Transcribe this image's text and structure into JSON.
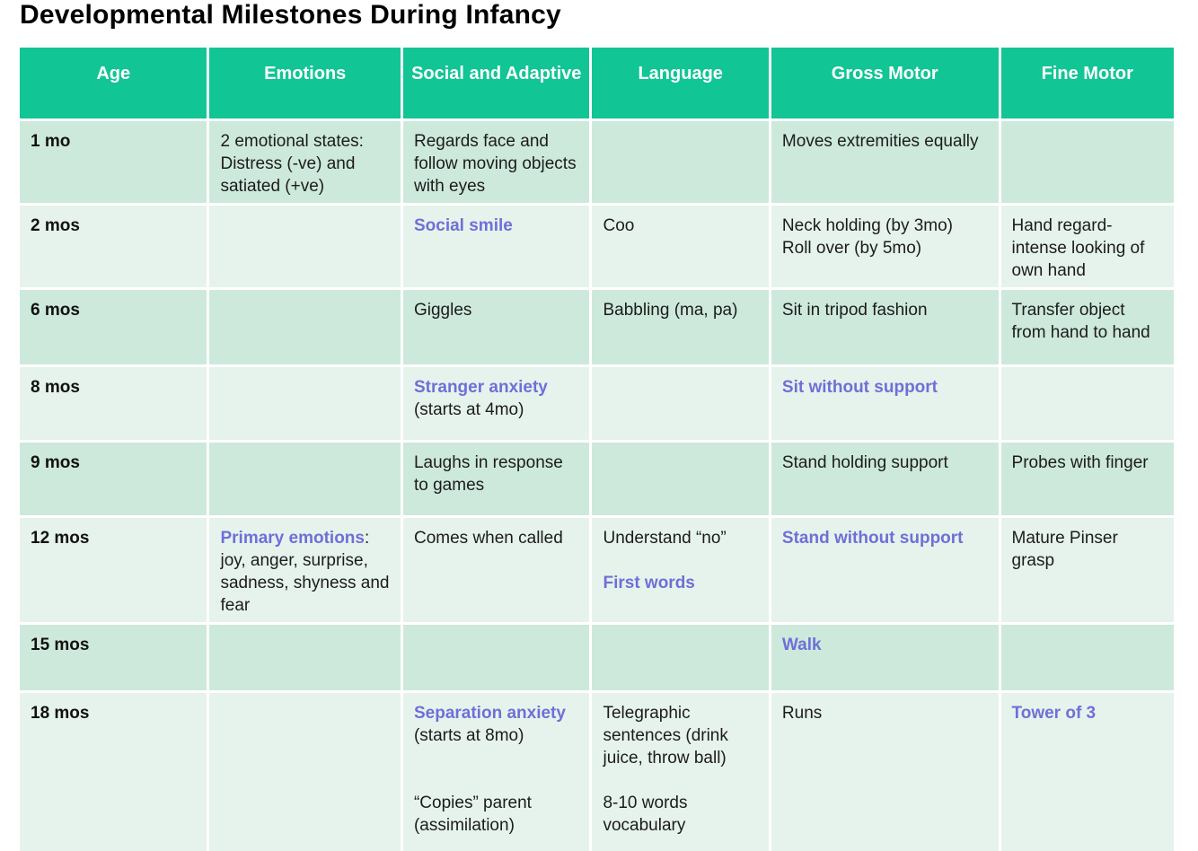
{
  "title": "Developmental Milestones During Infancy",
  "colors": {
    "header_bg": "#12c594",
    "row_band_dark": "#cde9dc",
    "row_band_light": "#e6f3ec",
    "accent_text": "#6f6fd8",
    "body_text": "#1c1c1c",
    "header_text": "#ffffff"
  },
  "table": {
    "columns": [
      "Age",
      "Emotions",
      "Social and Adaptive",
      "Language",
      "Gross Motor",
      "Fine Motor"
    ],
    "column_keys": [
      "age",
      "emotions",
      "social",
      "language",
      "gross",
      "fine"
    ],
    "rows": [
      {
        "age": "1 mo",
        "band": "dark",
        "cells": {
          "emotions": [
            [
              {
                "t": "2 emotional states: Distress (-ve) and satiated (+ve)"
              }
            ]
          ],
          "social": [
            [
              {
                "t": "Regards face and follow moving objects with eyes"
              }
            ]
          ],
          "language": [],
          "gross": [
            [
              {
                "t": "Moves extremities equally"
              }
            ]
          ],
          "fine": []
        }
      },
      {
        "age": "2 mos",
        "band": "light",
        "cells": {
          "emotions": [],
          "social": [
            [
              {
                "t": "Social smile",
                "s": "accent"
              }
            ]
          ],
          "language": [
            [
              {
                "t": "Coo"
              }
            ]
          ],
          "gross": [
            [
              {
                "t": "Neck holding (by 3mo)"
              }
            ],
            [
              {
                "t": "Roll over (by 5mo)"
              }
            ]
          ],
          "fine": [
            [
              {
                "t": "Hand regard- intense looking of own hand"
              }
            ]
          ]
        }
      },
      {
        "age": "6 mos",
        "band": "dark",
        "cells": {
          "emotions": [],
          "social": [
            [
              {
                "t": "Giggles"
              }
            ]
          ],
          "language": [
            [
              {
                "t": "Babbling (ma, pa)"
              }
            ]
          ],
          "gross": [
            [
              {
                "t": "Sit in tripod fashion"
              }
            ]
          ],
          "fine": [
            [
              {
                "t": "Transfer object from hand to hand"
              }
            ]
          ]
        }
      },
      {
        "age": "8 mos",
        "band": "light",
        "cells": {
          "emotions": [],
          "social": [
            [
              {
                "t": "Stranger anxiety",
                "s": "accent"
              }
            ],
            [
              {
                "t": "(starts at 4mo)"
              }
            ]
          ],
          "language": [],
          "gross": [
            [
              {
                "t": "Sit without support",
                "s": "accent"
              }
            ]
          ],
          "fine": []
        }
      },
      {
        "age": "9 mos",
        "band": "dark",
        "cells": {
          "emotions": [],
          "social": [
            [
              {
                "t": "Laughs in response to games"
              }
            ]
          ],
          "language": [],
          "gross": [
            [
              {
                "t": "Stand holding support"
              }
            ]
          ],
          "fine": [
            [
              {
                "t": "Probes with finger"
              }
            ]
          ]
        }
      },
      {
        "age": "12 mos",
        "band": "light",
        "cells": {
          "emotions": [
            [
              {
                "t": "Primary emotions",
                "s": "accent"
              },
              {
                "t": ": joy, anger, surprise, sadness, shyness and fear"
              }
            ]
          ],
          "social": [
            [
              {
                "t": "Comes when called"
              }
            ]
          ],
          "language": [
            [
              {
                "t": "Understand “no”"
              }
            ],
            [],
            [
              {
                "t": "First words",
                "s": "accent"
              }
            ]
          ],
          "gross": [
            [
              {
                "t": "Stand without support",
                "s": "accent"
              }
            ]
          ],
          "fine": [
            [
              {
                "t": "Mature Pinser grasp"
              }
            ]
          ]
        }
      },
      {
        "age": "15 mos",
        "band": "dark",
        "cells": {
          "emotions": [],
          "social": [],
          "language": [],
          "gross": [
            [
              {
                "t": "Walk",
                "s": "accent"
              }
            ]
          ],
          "fine": []
        }
      },
      {
        "age": "18 mos",
        "band": "light",
        "cells": {
          "emotions": [],
          "social": [
            [
              {
                "t": "Separation anxiety",
                "s": "accent"
              }
            ],
            [
              {
                "t": "(starts at 8mo)"
              }
            ],
            [],
            [],
            [
              {
                "t": "“Copies” parent"
              }
            ],
            [
              {
                "t": "(assimilation)"
              }
            ]
          ],
          "language": [
            [
              {
                "t": "Telegraphic sentences (drink juice, throw ball)"
              }
            ],
            [],
            [
              {
                "t": "8-10 words vocabulary"
              }
            ]
          ],
          "gross": [
            [
              {
                "t": "Runs"
              }
            ]
          ],
          "fine": [
            [
              {
                "t": "Tower of 3",
                "s": "accent"
              }
            ]
          ]
        }
      }
    ]
  }
}
